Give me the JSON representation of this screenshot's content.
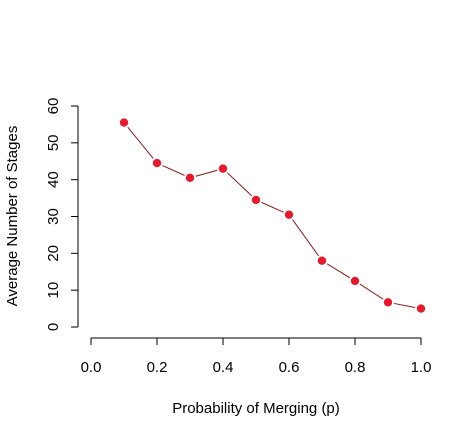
{
  "chart_data": {
    "type": "line",
    "title": "",
    "xlabel": "Probability of Merging (p)",
    "ylabel": "Average Number of Stages",
    "xlim": [
      0.0,
      1.0
    ],
    "ylim": [
      0,
      60
    ],
    "xticks": [
      "0.0",
      "0.2",
      "0.4",
      "0.6",
      "0.8",
      "1.0"
    ],
    "yticks": [
      "0",
      "10",
      "20",
      "30",
      "40",
      "50",
      "60"
    ],
    "grid": false,
    "legend": "none",
    "series": [
      {
        "x": [
          0.1,
          0.2,
          0.3,
          0.4,
          0.5,
          0.6,
          0.7,
          0.8,
          0.9,
          1.0
        ],
        "y": [
          55.5,
          44.5,
          40.5,
          43.0,
          34.5,
          30.5,
          18.0,
          12.5,
          6.7,
          5.0
        ],
        "line_color": "#8b1a1a",
        "marker_color": "#e8192c"
      }
    ]
  }
}
